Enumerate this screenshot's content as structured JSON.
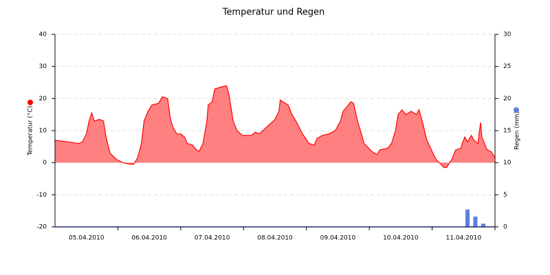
{
  "chart_data": {
    "type": "area",
    "title": "Temperatur und Regen",
    "ylabel": "Temperatur (°C)",
    "y2label": "Regen (mm)",
    "xlim": [
      0,
      168
    ],
    "ylim": [
      -20,
      40
    ],
    "yticks": [
      -20,
      -10,
      0,
      10,
      20,
      30,
      40
    ],
    "y2lim": [
      0,
      30
    ],
    "y2ticks": [
      0,
      5,
      10,
      15,
      20,
      25,
      30
    ],
    "grid": true,
    "xticks": [
      {
        "value": 12,
        "label": "05.04.2010"
      },
      {
        "value": 36,
        "label": "06.04.2010"
      },
      {
        "value": 60,
        "label": "07.04.2010"
      },
      {
        "value": 84,
        "label": "08.04.2010"
      },
      {
        "value": 108,
        "label": "09.04.2010"
      },
      {
        "value": 132,
        "label": "10.04.2010"
      },
      {
        "value": 156,
        "label": "11.04.2010"
      }
    ],
    "series": [
      {
        "type": "area",
        "color": "#ff0000",
        "fill": "#ff8080",
        "x": [
          0,
          5,
          9,
          10.5,
          12,
          13,
          14,
          15,
          17,
          18.5,
          19.5,
          21,
          23.5,
          26,
          29,
          30,
          31.5,
          33,
          34,
          35.5,
          37,
          39.5,
          41,
          43,
          44,
          45,
          46.5,
          48,
          49.5,
          50.5,
          52.5,
          54,
          55,
          56.5,
          58,
          58.5,
          60,
          61,
          63,
          65.5,
          66.5,
          68,
          69.5,
          71.5,
          73,
          75,
          76.5,
          78,
          80,
          82,
          84,
          85.5,
          86,
          88,
          89,
          90.5,
          92,
          94.5,
          97,
          99,
          100,
          102,
          104.5,
          107,
          109,
          110,
          111.5,
          113,
          114,
          115.5,
          117,
          118,
          121,
          123,
          124,
          127,
          128.5,
          130,
          131,
          132.5,
          134,
          136,
          138,
          139,
          140.5,
          142,
          144,
          145.5,
          148.5,
          149.5,
          151.5,
          153,
          155,
          155.5,
          156.5,
          157.5,
          159,
          160,
          161.5,
          162,
          162.5,
          163,
          164,
          165,
          166.5,
          168
        ],
        "values": [
          7,
          6.5,
          6,
          6.5,
          9,
          13,
          15.5,
          13,
          13.5,
          13,
          8,
          3,
          1,
          0,
          -0.5,
          -0.5,
          1.5,
          6,
          13,
          16,
          18,
          18.5,
          20.5,
          20,
          14,
          11,
          9,
          9,
          8,
          6,
          5.5,
          4,
          3.5,
          6,
          13,
          18,
          19,
          23,
          23.5,
          24,
          21,
          13,
          10,
          8.5,
          8.5,
          8.5,
          9.5,
          9,
          10.5,
          12,
          13.5,
          16,
          19.5,
          18.5,
          18,
          15,
          13,
          9,
          6,
          5.5,
          7.5,
          8.5,
          9,
          10,
          13,
          16,
          17.5,
          19,
          18.5,
          13,
          9,
          6,
          3.5,
          2.5,
          4,
          4.5,
          6,
          10,
          15,
          16.5,
          15,
          16,
          15,
          16.5,
          12,
          7,
          3.5,
          1,
          -1.5,
          -1.5,
          1,
          4,
          4.5,
          6,
          8,
          6.5,
          8.5,
          7,
          6,
          9.5,
          12.5,
          8,
          6,
          4,
          3.5,
          1.5
        ]
      },
      {
        "type": "bar",
        "axis": "y2",
        "color": "#5b7fe0",
        "x": [
          157.5,
          160.5,
          163.5
        ],
        "values": [
          2.7,
          1.6,
          0.5
        ]
      }
    ]
  }
}
